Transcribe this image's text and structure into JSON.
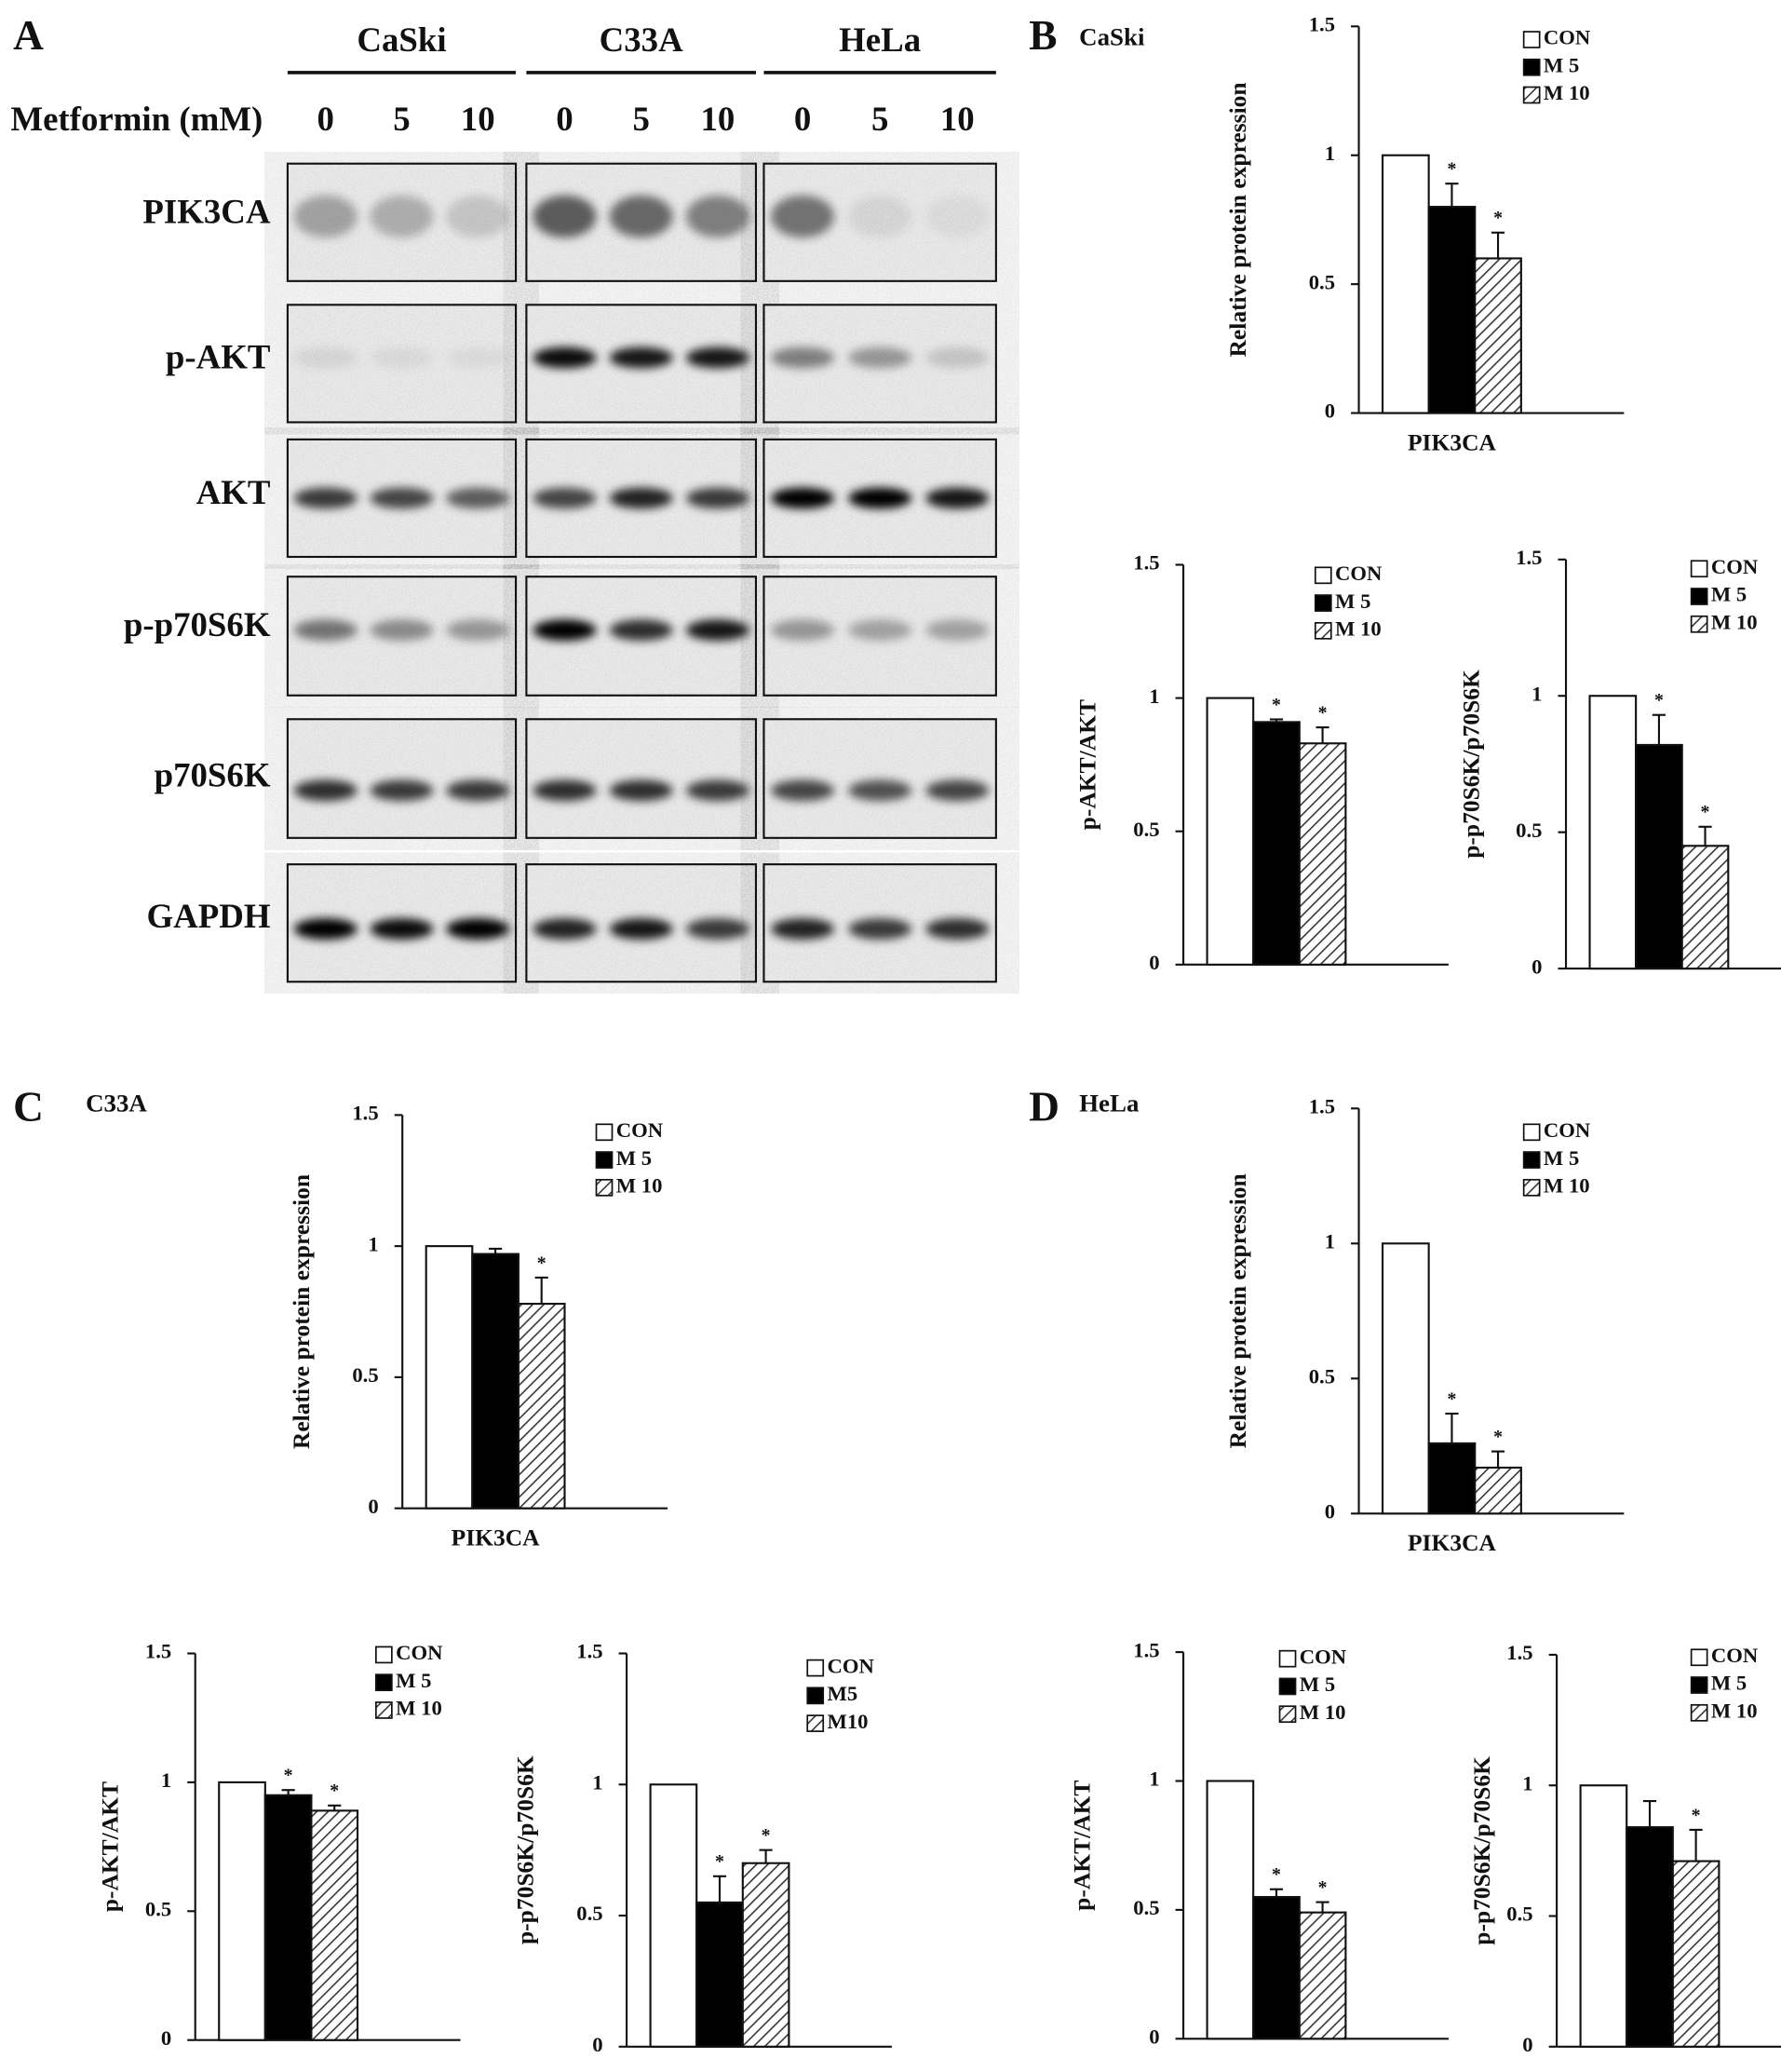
{
  "panels": [
    {
      "label": "A"
    },
    {
      "label": "B",
      "cell": "CaSki"
    },
    {
      "label": "C",
      "cell": "C33A"
    },
    {
      "label": "D",
      "cell": "HeLa"
    }
  ],
  "blot": {
    "cell_lines": [
      "CaSki",
      "C33A",
      "HeLa"
    ],
    "treatment_label": "Metformin (mM)",
    "lanes": [
      [
        "0",
        "5",
        "10"
      ],
      [
        "0",
        "5",
        "10"
      ],
      [
        "0",
        "5",
        "10"
      ]
    ],
    "proteins": [
      "PIK3CA",
      "p-AKT",
      "AKT",
      "p-p70S6K",
      "p70S6K",
      "GAPDH"
    ]
  },
  "chart_data": [
    {
      "type": "bar",
      "ylabel": "Relative protein expression",
      "categories": [
        "PIK3CA"
      ],
      "ylim": [
        0,
        1.5
      ],
      "yticks": [
        0,
        0.5,
        1,
        1.5
      ],
      "series": [
        {
          "name": "CON",
          "color": "#ffffff",
          "values": [
            1
          ]
        },
        {
          "name": "M 5",
          "color": "#000000",
          "values": [
            0.8
          ],
          "errors": [
            0.09
          ],
          "annotation": "*"
        },
        {
          "name": "M 10",
          "color": "#555555",
          "hatch": true,
          "values": [
            0.6
          ],
          "errors": [
            0.1
          ],
          "annotation": "*"
        }
      ]
    },
    {
      "type": "bar",
      "ylabel": "p-AKT/AKT",
      "categories": [
        null
      ],
      "ylim": [
        0,
        1.5
      ],
      "yticks": [
        0,
        0.5,
        1,
        1.5
      ],
      "series": [
        {
          "name": "CON",
          "color": "#ffffff",
          "values": [
            1
          ]
        },
        {
          "name": "M 5",
          "color": "#000000",
          "values": [
            0.91
          ],
          "errors": [
            0.01
          ],
          "annotation": "*"
        },
        {
          "name": "M 10",
          "color": "#555555",
          "hatch": true,
          "values": [
            0.83
          ],
          "errors": [
            0.06
          ],
          "annotation": "*"
        }
      ]
    },
    {
      "type": "bar",
      "ylabel": "p-p70S6K/p70S6K",
      "categories": [
        null
      ],
      "ylim": [
        0,
        1.5
      ],
      "yticks": [
        0,
        0.5,
        1,
        1.5
      ],
      "series": [
        {
          "name": "CON",
          "color": "#ffffff",
          "values": [
            1
          ]
        },
        {
          "name": "M 5",
          "color": "#000000",
          "values": [
            0.82
          ],
          "errors": [
            0.11
          ],
          "annotation": "*"
        },
        {
          "name": "M 10",
          "color": "#555555",
          "hatch": true,
          "values": [
            0.45
          ],
          "errors": [
            0.07
          ],
          "annotation": "*"
        }
      ]
    },
    {
      "type": "bar",
      "ylabel": "Relative protein expression",
      "categories": [
        "PIK3CA"
      ],
      "ylim": [
        0,
        1.5
      ],
      "yticks": [
        0,
        0.5,
        1,
        1.5
      ],
      "series": [
        {
          "name": "CON",
          "color": "#ffffff",
          "values": [
            1
          ]
        },
        {
          "name": "M 5",
          "color": "#000000",
          "values": [
            0.97
          ],
          "errors": [
            0.02
          ]
        },
        {
          "name": "M 10",
          "color": "#555555",
          "hatch": true,
          "values": [
            0.78
          ],
          "errors": [
            0.1
          ],
          "annotation": "*"
        }
      ]
    },
    {
      "type": "bar",
      "ylabel": "p-AKT/AKT",
      "categories": [
        null
      ],
      "ylim": [
        0,
        1.5
      ],
      "yticks": [
        0,
        0.5,
        1,
        1.5
      ],
      "series": [
        {
          "name": "CON",
          "color": "#ffffff",
          "values": [
            1
          ]
        },
        {
          "name": "M 5",
          "color": "#000000",
          "values": [
            0.95
          ],
          "errors": [
            0.02
          ],
          "annotation": "*"
        },
        {
          "name": "M 10",
          "color": "#555555",
          "hatch": true,
          "values": [
            0.89
          ],
          "errors": [
            0.02
          ],
          "annotation": "*"
        }
      ]
    },
    {
      "type": "bar",
      "ylabel": "p-p70S6K/p70S6K",
      "categories": [
        null
      ],
      "ylim": [
        0,
        1.5
      ],
      "yticks": [
        0,
        0.5,
        1,
        1.5
      ],
      "series": [
        {
          "name": "CON",
          "color": "#ffffff",
          "values": [
            1
          ]
        },
        {
          "name": "M5",
          "color": "#000000",
          "values": [
            0.55
          ],
          "errors": [
            0.1
          ],
          "annotation": "*"
        },
        {
          "name": "M10",
          "color": "#555555",
          "hatch": true,
          "values": [
            0.7
          ],
          "errors": [
            0.05
          ],
          "annotation": "*"
        }
      ]
    },
    {
      "type": "bar",
      "ylabel": "Relative protein expression",
      "categories": [
        "PIK3CA"
      ],
      "ylim": [
        0,
        1.5
      ],
      "yticks": [
        0,
        0.5,
        1,
        1.5
      ],
      "series": [
        {
          "name": "CON",
          "color": "#ffffff",
          "values": [
            1
          ]
        },
        {
          "name": "M 5",
          "color": "#000000",
          "values": [
            0.26
          ],
          "errors": [
            0.11
          ],
          "annotation": "*"
        },
        {
          "name": "M 10",
          "color": "#555555",
          "hatch": true,
          "values": [
            0.17
          ],
          "errors": [
            0.06
          ],
          "annotation": "*"
        }
      ]
    },
    {
      "type": "bar",
      "ylabel": "p-AKT/AKT",
      "categories": [
        null
      ],
      "ylim": [
        0,
        1.5
      ],
      "yticks": [
        0,
        0.5,
        1,
        1.5
      ],
      "series": [
        {
          "name": "CON",
          "color": "#ffffff",
          "values": [
            1
          ]
        },
        {
          "name": "M 5",
          "color": "#000000",
          "values": [
            0.55
          ],
          "errors": [
            0.03
          ],
          "annotation": "*"
        },
        {
          "name": "M 10",
          "color": "#555555",
          "hatch": true,
          "values": [
            0.49
          ],
          "errors": [
            0.04
          ],
          "annotation": "*"
        }
      ]
    },
    {
      "type": "bar",
      "ylabel": "p-p70S6K/p70S6K",
      "categories": [
        null
      ],
      "ylim": [
        0,
        1.5
      ],
      "yticks": [
        0,
        0.5,
        1,
        1.5
      ],
      "series": [
        {
          "name": "CON",
          "color": "#ffffff",
          "values": [
            1
          ]
        },
        {
          "name": "M 5",
          "color": "#000000",
          "values": [
            0.84
          ],
          "errors": [
            0.1
          ]
        },
        {
          "name": "M 10",
          "color": "#555555",
          "hatch": true,
          "values": [
            0.71
          ],
          "errors": [
            0.12
          ],
          "annotation": "*"
        }
      ]
    }
  ]
}
